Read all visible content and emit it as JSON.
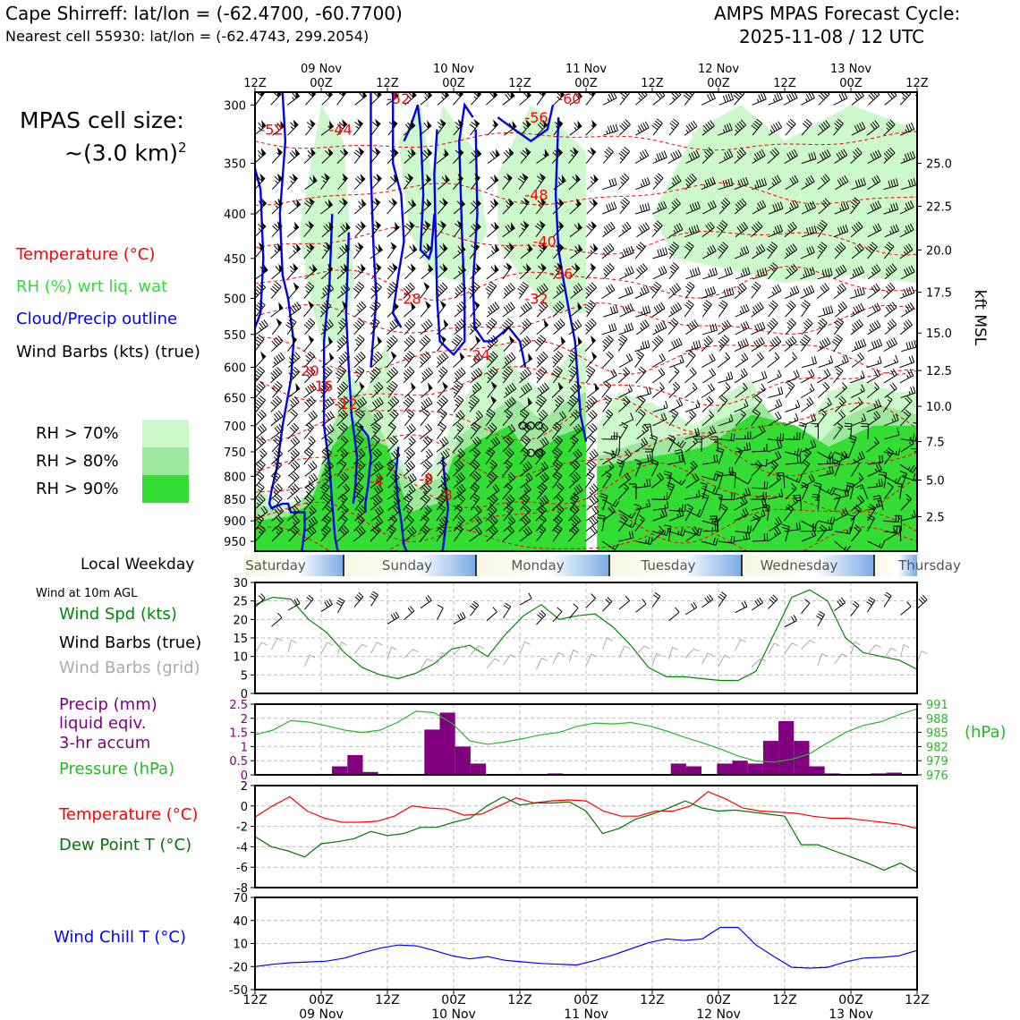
{
  "header": {
    "station_line": "Cape Shirreff: lat/lon = (-62.4700, -60.7700)",
    "cell_line": "Nearest cell 55930: lat/lon = (-62.4743, 299.2054)",
    "cycle_title": "AMPS MPAS Forecast Cycle:",
    "cycle_time": "2025-11-08 / 12 UTC"
  },
  "cell_size": {
    "label": "MPAS cell size:",
    "value": "~(3.0 km)",
    "sup": "2"
  },
  "colors": {
    "temperature": "#ff0000",
    "rh": "#33dd33",
    "cloud": "#0000ee",
    "precip": "#800080",
    "pressure": "#22bb22",
    "dewpoint": "#007700",
    "windchill": "#0000ff",
    "grid_barbs": "#aaaaaa",
    "rh70": "#ccf8cc",
    "rh80": "#9de89d",
    "rh90": "#33dd33"
  },
  "legend_upper": {
    "temperature": "Temperature (°C)",
    "rh": "RH (%) wrt liq. wat",
    "cloud": "Cloud/Precip outline",
    "barbs": "Wind Barbs (kts) (true)",
    "rh70": "RH > 70%",
    "rh80": "RH > 80%",
    "rh90": "RH > 90%"
  },
  "weekday_label": "Local Weekday",
  "weekdays": [
    "Saturday",
    "Sunday",
    "Monday",
    "Tuesday",
    "Wednesday",
    "Thursday"
  ],
  "legend_wind": {
    "title": "Wind at 10m AGL",
    "speed": "Wind Spd (kts)",
    "barbs_true": "Wind Barbs (true)",
    "barbs_grid": "Wind Barbs (grid)"
  },
  "legend_precip": {
    "line1": "Precip (mm)",
    "line2": "liquid eqiv.",
    "line3": "3-hr accum",
    "pressure": "Pressure (hPa)"
  },
  "legend_temp": {
    "temp": "Temperature (°C)",
    "dew": "Dew Point T (°C)"
  },
  "legend_windchill": "Wind Chill T (°C)",
  "chart_data": {
    "type": "line",
    "x_labels_top": [
      "12Z",
      "00Z",
      "12Z",
      "00Z",
      "12Z",
      "00Z",
      "12Z",
      "00Z",
      "12Z",
      "00Z",
      "12Z"
    ],
    "x_dates": [
      "09 Nov",
      "10 Nov",
      "11 Nov",
      "12 Nov",
      "13 Nov"
    ],
    "x_hours": [
      0,
      12,
      24,
      36,
      48,
      60,
      72,
      84,
      96,
      108,
      120
    ],
    "upper": {
      "pressure_ticks": [
        300,
        350,
        400,
        450,
        500,
        550,
        600,
        650,
        700,
        750,
        800,
        850,
        900,
        950
      ],
      "pressure_range": [
        975,
        290
      ],
      "kft_ticks": [
        {
          "p": 350,
          "label": "25.0"
        },
        {
          "p": 392,
          "label": "22.5"
        },
        {
          "p": 440,
          "label": "20.0"
        },
        {
          "p": 492,
          "label": "17.5"
        },
        {
          "p": 548,
          "label": "15.0"
        },
        {
          "p": 605,
          "label": "12.5"
        },
        {
          "p": 665,
          "label": "10.0"
        },
        {
          "p": 730,
          "label": "7.5"
        },
        {
          "p": 808,
          "label": "5.0"
        },
        {
          "p": 890,
          "label": "2.5"
        }
      ],
      "kft_label": "kft MSL",
      "temp_labels": [
        {
          "h": 3,
          "p": 320,
          "v": "-52"
        },
        {
          "h": 15.5,
          "p": 320,
          "v": "-44"
        },
        {
          "h": 26,
          "p": 295,
          "v": "-52"
        },
        {
          "h": 51,
          "p": 310,
          "v": "-56"
        },
        {
          "h": 57,
          "p": 295,
          "v": "-60"
        },
        {
          "h": 51,
          "p": 380,
          "v": "-48"
        },
        {
          "h": 52.5,
          "p": 430,
          "v": "-40"
        },
        {
          "h": 55.5,
          "p": 468,
          "v": "-36"
        },
        {
          "h": 28,
          "p": 500,
          "v": "-28"
        },
        {
          "h": 51,
          "p": 500,
          "v": "-32"
        },
        {
          "h": 40.5,
          "p": 580,
          "v": "-24"
        },
        {
          "h": 9.5,
          "p": 605,
          "v": "-20"
        },
        {
          "h": 12,
          "p": 630,
          "v": "-16"
        },
        {
          "h": 16.5,
          "p": 660,
          "v": "-12"
        },
        {
          "h": 22,
          "p": 810,
          "v": "-4"
        },
        {
          "h": 31,
          "p": 805,
          "v": "-8"
        },
        {
          "h": 34.5,
          "p": 840,
          "v": "-8"
        }
      ],
      "circles": [
        {
          "h": 48.5,
          "p": 700
        },
        {
          "h": 50,
          "p": 700
        },
        {
          "h": 51.5,
          "p": 700
        },
        {
          "h": 50,
          "p": 752
        },
        {
          "h": 51.5,
          "p": 752
        }
      ]
    },
    "wind10m": {
      "ylim": [
        0,
        30
      ],
      "yticks": [
        0,
        5,
        10,
        15,
        20,
        25,
        30
      ],
      "speed": [
        24,
        26,
        25.5,
        20,
        16.5,
        11,
        7,
        5,
        4,
        5.5,
        8,
        12,
        13,
        10,
        16,
        21,
        24,
        20,
        21,
        21.5,
        18,
        13,
        7,
        4.5,
        4.5,
        4,
        3.5,
        3.5,
        6,
        16,
        26,
        28,
        25,
        15,
        11,
        10,
        9,
        6.5
      ]
    },
    "precip_pressure": {
      "precip_ylim": [
        0,
        2.5
      ],
      "precip_ticks": [
        0,
        0.5,
        1.0,
        1.5,
        2.0,
        2.5
      ],
      "precip": [
        0,
        0,
        0,
        0,
        0,
        0.3,
        0.7,
        0.1,
        0,
        0,
        0,
        1.6,
        2.2,
        1.0,
        0.4,
        0,
        0,
        0,
        0,
        0.05,
        0,
        0,
        0,
        0,
        0,
        0,
        0,
        0.4,
        0.3,
        0,
        0.4,
        0.5,
        0.4,
        1.2,
        1.9,
        1.2,
        0.3,
        0.05,
        0,
        0,
        0.05,
        0.08,
        0
      ],
      "pressure_ylim": [
        976,
        991
      ],
      "pressure_ticks": [
        976,
        979,
        982,
        985,
        988,
        991
      ],
      "pressure_unit": "(hPa)",
      "pressure": [
        984.5,
        985.5,
        987.5,
        987.2,
        986.4,
        985.5,
        985.0,
        985.5,
        987.2,
        989.5,
        989.2,
        987.0,
        983.2,
        982.5,
        983.0,
        983.7,
        984.5,
        985.0,
        986.3,
        987.0,
        986.8,
        987.1,
        986.4,
        985.3,
        984.0,
        982.8,
        981.5,
        980.0,
        978.9,
        978.7,
        979.3,
        980.5,
        982.8,
        985.0,
        986.5,
        987.3,
        988.8,
        990.0
      ]
    },
    "temp_dew": {
      "ylim": [
        -8,
        2
      ],
      "yticks": [
        -8,
        -6,
        -4,
        -2,
        0,
        2
      ],
      "temp": [
        -1.1,
        0.0,
        0.9,
        -0.5,
        -1.2,
        -1.6,
        -1.6,
        -1.5,
        -1.0,
        0.0,
        -0.2,
        -0.3,
        -0.9,
        -0.8,
        0.0,
        0.8,
        0.3,
        0.5,
        0.6,
        0.5,
        -0.5,
        -1.0,
        -1.0,
        -0.5,
        -0.5,
        0.0,
        1.4,
        0.7,
        -0.2,
        -0.5,
        -0.6,
        -0.7,
        -1.0,
        -1.2,
        -1.2,
        -1.4,
        -1.6,
        -1.8,
        -2.2
      ],
      "dew": [
        -3.0,
        -4.0,
        -4.4,
        -5.0,
        -3.7,
        -3.5,
        -3.2,
        -2.5,
        -2.9,
        -2.7,
        -2.1,
        -2.1,
        -1.6,
        -1.2,
        0.0,
        0.9,
        0.1,
        0.3,
        0.3,
        0.4,
        -0.5,
        -2.7,
        -2.2,
        -1.3,
        -0.8,
        -0.2,
        0.5,
        -0.2,
        -0.5,
        -0.4,
        -0.6,
        -0.8,
        -1.0,
        -3.8,
        -3.8,
        -4.4,
        -5.0,
        -5.6,
        -6.3,
        -5.6,
        -6.5
      ]
    },
    "windchill": {
      "ylim": [
        -50,
        70
      ],
      "yticks": [
        -50,
        -20,
        10,
        40,
        70
      ],
      "values": [
        -20,
        -17,
        -15,
        -14,
        -13,
        -9,
        -2,
        4,
        8,
        7,
        1,
        -6,
        -10,
        -7,
        -12,
        -14,
        -16,
        -17,
        -18,
        -12,
        -5,
        3,
        11,
        16,
        14,
        16,
        31,
        31,
        8,
        -7,
        -21,
        -22,
        -21,
        -14,
        -9,
        -8,
        -6,
        1
      ]
    }
  }
}
